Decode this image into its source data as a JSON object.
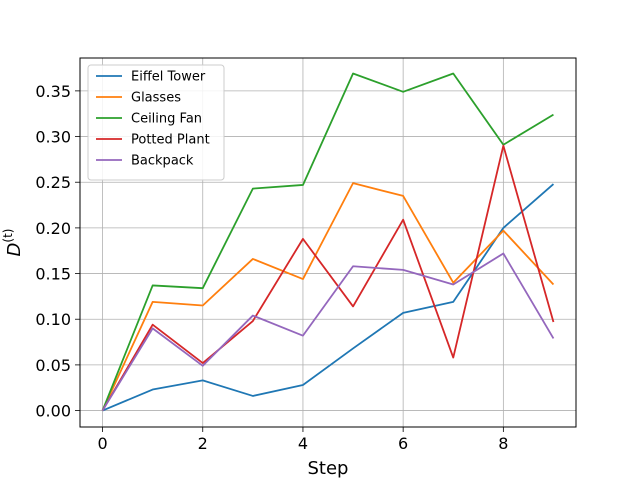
{
  "chart_data": {
    "type": "line",
    "title": "",
    "xlabel": "Step",
    "ylabel_base": "D",
    "ylabel_sup": "(t)",
    "x": [
      0,
      1,
      2,
      3,
      4,
      5,
      6,
      7,
      8,
      9
    ],
    "xlim": [
      -0.45,
      9.45
    ],
    "ylim": [
      -0.018,
      0.386
    ],
    "xticks": [
      0,
      2,
      4,
      6,
      8
    ],
    "yticks": [
      0.0,
      0.05,
      0.1,
      0.15,
      0.2,
      0.25,
      0.3,
      0.35
    ],
    "xtick_labels": [
      "0",
      "2",
      "4",
      "6",
      "8"
    ],
    "ytick_labels": [
      "0.00",
      "0.05",
      "0.10",
      "0.15",
      "0.20",
      "0.25",
      "0.30",
      "0.35"
    ],
    "grid": true,
    "legend_position": "top-left",
    "series": [
      {
        "name": "Eiffel Tower",
        "color": "#1f77b4",
        "values": [
          0.0,
          0.023,
          0.033,
          0.016,
          0.028,
          0.068,
          0.107,
          0.119,
          0.2,
          0.248
        ]
      },
      {
        "name": "Glasses",
        "color": "#ff7f0e",
        "values": [
          0.0,
          0.119,
          0.115,
          0.166,
          0.144,
          0.249,
          0.235,
          0.14,
          0.197,
          0.138
        ]
      },
      {
        "name": "Ceiling Fan",
        "color": "#2ca02c",
        "values": [
          0.0,
          0.137,
          0.134,
          0.243,
          0.247,
          0.369,
          0.349,
          0.369,
          0.291,
          0.324
        ]
      },
      {
        "name": "Potted Plant",
        "color": "#d62728",
        "values": [
          0.0,
          0.094,
          0.052,
          0.098,
          0.188,
          0.114,
          0.209,
          0.058,
          0.29,
          0.097
        ]
      },
      {
        "name": "Backpack",
        "color": "#9467bd",
        "values": [
          0.0,
          0.09,
          0.049,
          0.104,
          0.082,
          0.158,
          0.154,
          0.138,
          0.172,
          0.079
        ]
      }
    ]
  }
}
